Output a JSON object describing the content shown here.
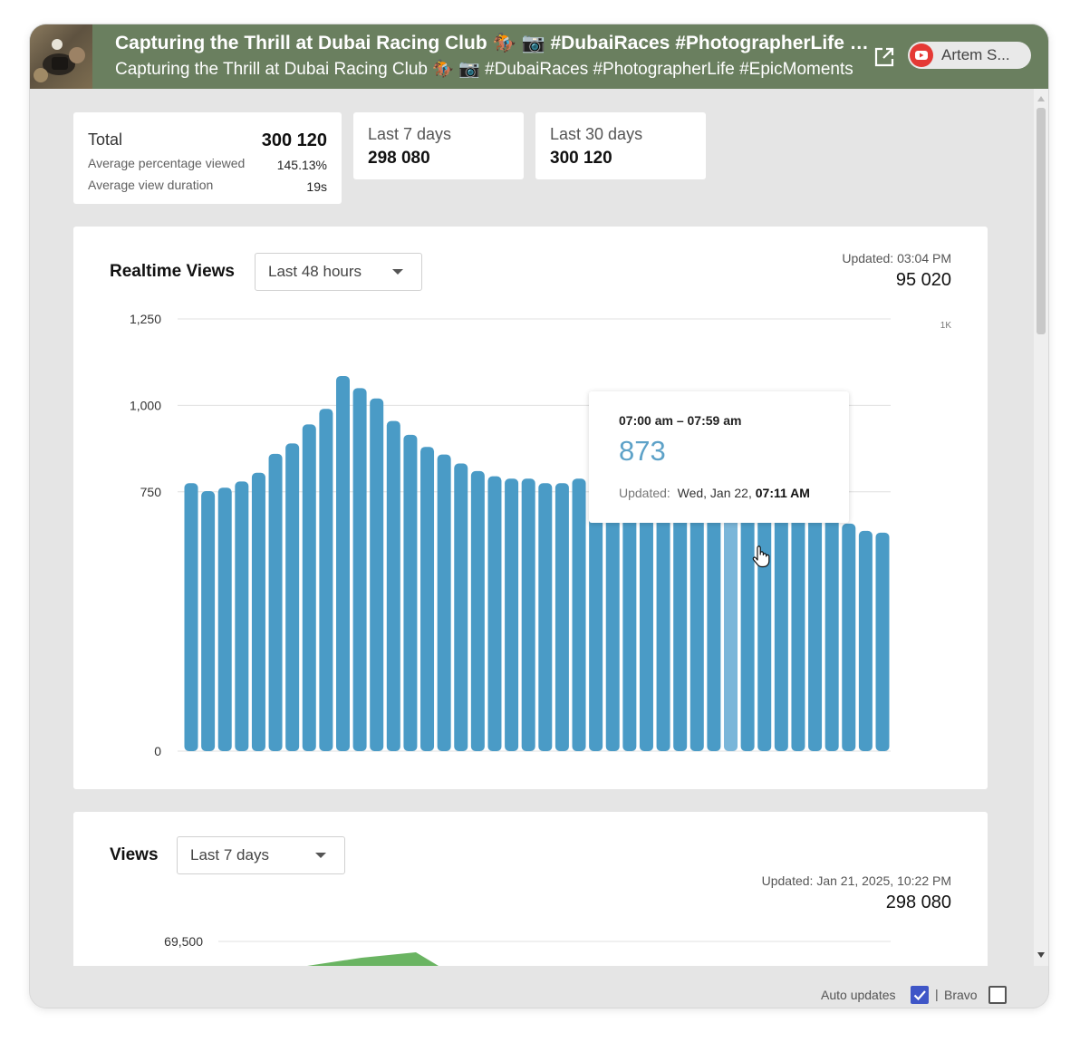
{
  "video": {
    "title": "Capturing the Thrill at Dubai Racing Club 🏇 📷 #DubaiRaces #PhotographerLife #EpicMoments",
    "subtitle": "Capturing the Thrill at Dubai Racing Club 🏇 📷 #DubaiRaces #PhotographerLife #EpicMoments"
  },
  "account": {
    "name": "Artem S..."
  },
  "stats": {
    "total": {
      "label": "Total",
      "value": "300 120",
      "avg_pct_label": "Average percentage viewed",
      "avg_pct_value": "145.13%",
      "avg_dur_label": "Average view duration",
      "avg_dur_value": "19s"
    },
    "last7": {
      "label": "Last 7 days",
      "value": "298 080"
    },
    "last30": {
      "label": "Last 30 days",
      "value": "300 120"
    }
  },
  "realtime": {
    "title": "Realtime Views",
    "range": "Last 48 hours",
    "updated_label": "Updated: 03:04 PM",
    "updated_value": "95 020",
    "tooltip": {
      "range": "07:00 am – 07:59 am",
      "value": "873",
      "updated_prefix": "Updated:",
      "updated_date": "Wed, Jan 22,",
      "updated_time": "07:11 AM"
    }
  },
  "views": {
    "title": "Views",
    "range": "Last 7 days",
    "updated_label": "Updated: Jan 21, 2025, 10:22 PM",
    "updated_value": "298 080",
    "y_tick": "69,500"
  },
  "footer": {
    "auto_updates": "Auto updates",
    "separator": "|",
    "bravo": "Bravo"
  },
  "colors": {
    "header": "#6a7f5f",
    "bar": "#4a9bc6",
    "bar_highlight": "#7ab6d9",
    "views_area": "#6ab462",
    "checkbox": "#3f56c7"
  },
  "chart_data": [
    {
      "type": "bar",
      "title": "Realtime Views",
      "ylim": [
        0,
        1250
      ],
      "yticks": [
        "0",
        "750",
        "1,000",
        "1,250"
      ],
      "ytick_values": [
        0,
        750,
        1000,
        1250
      ],
      "right_axis_label": "1K",
      "highlight_index": 32,
      "values": [
        775,
        752,
        762,
        780,
        805,
        860,
        890,
        945,
        990,
        1085,
        1050,
        1020,
        955,
        915,
        880,
        858,
        832,
        810,
        795,
        788,
        788,
        775,
        775,
        788,
        805,
        788,
        780,
        780,
        788,
        790,
        810,
        830,
        873,
        795,
        765,
        745,
        720,
        695,
        678,
        658,
        637,
        632
      ]
    },
    {
      "type": "area",
      "title": "Views",
      "yticks": [
        "69,500"
      ],
      "ytick_values": [
        69500
      ],
      "x": [
        0,
        1,
        2,
        3
      ],
      "values": [
        66800,
        67700,
        68300,
        66500
      ]
    }
  ]
}
